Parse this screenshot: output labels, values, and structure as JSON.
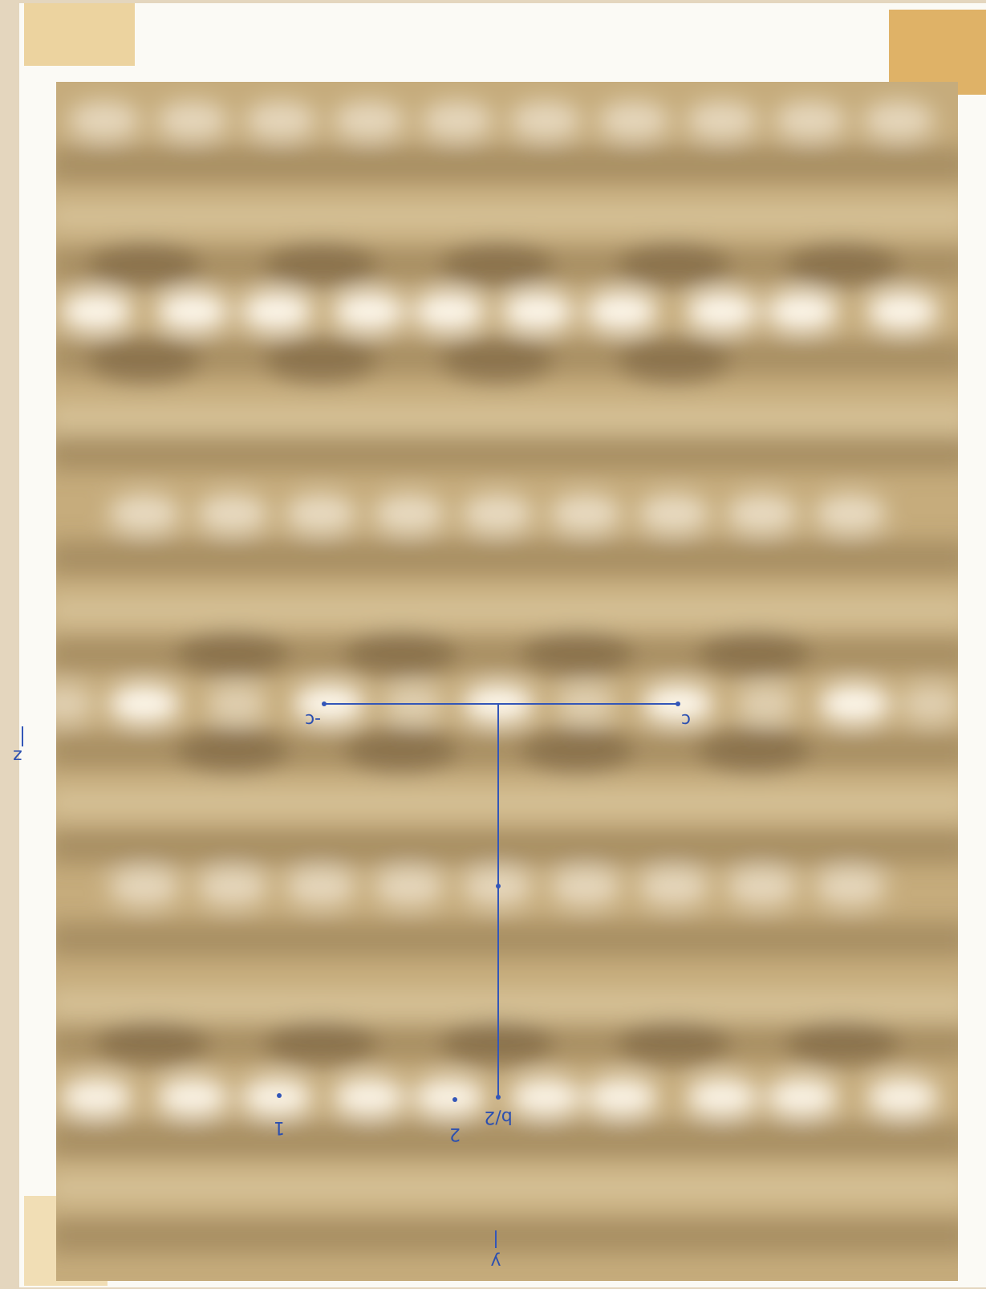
{
  "labels": {
    "minus_c": "-c",
    "c": "c",
    "b_half": "b/2",
    "one": "1",
    "two": "2",
    "z": "z",
    "y": "y"
  }
}
